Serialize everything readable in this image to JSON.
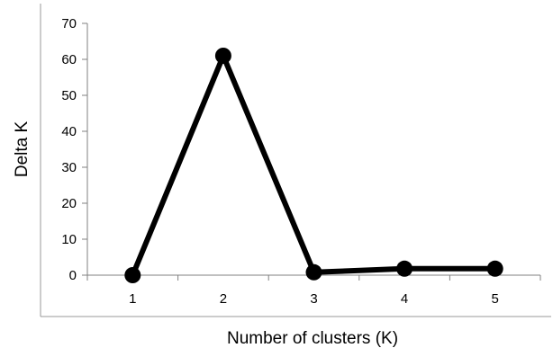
{
  "chart_data": {
    "type": "line",
    "title": "",
    "xlabel": "Number of clusters (K)",
    "ylabel": "Delta K",
    "x": [
      1,
      2,
      3,
      4,
      5
    ],
    "series": [
      {
        "values": [
          0,
          61,
          0.8,
          1.8,
          1.8
        ]
      }
    ],
    "ylim": [
      0,
      70
    ],
    "yticks": [
      0,
      10,
      20,
      30,
      40,
      50,
      60,
      70
    ],
    "xticks": [
      1,
      2,
      3,
      4,
      5
    ],
    "grid": false,
    "legend": "none",
    "line_color": "#000000",
    "marker_color": "#000000",
    "frame_color": "#999999"
  }
}
